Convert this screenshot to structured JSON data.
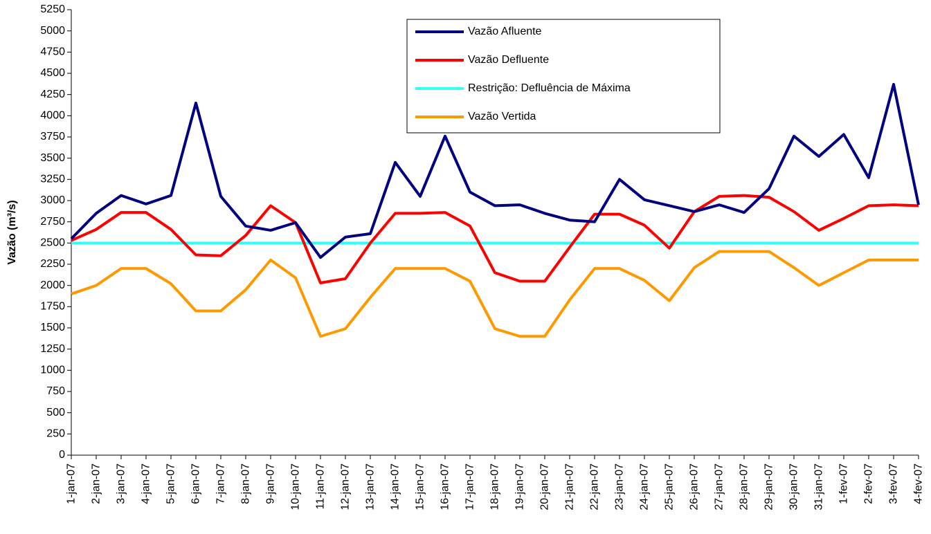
{
  "chart_data": {
    "type": "line",
    "ylabel": "Vazão (m³/s)",
    "categories": [
      "1-jan-07",
      "2-jan-07",
      "3-jan-07",
      "4-jan-07",
      "5-jan-07",
      "6-jan-07",
      "7-jan-07",
      "8-jan-07",
      "9-jan-07",
      "10-jan-07",
      "11-jan-07",
      "12-jan-07",
      "13-jan-07",
      "14-jan-07",
      "15-jan-07",
      "16-jan-07",
      "17-jan-07",
      "18-jan-07",
      "19-jan-07",
      "20-jan-07",
      "21-jan-07",
      "22-jan-07",
      "23-jan-07",
      "24-jan-07",
      "25-jan-07",
      "26-jan-07",
      "27-jan-07",
      "28-jan-07",
      "29-jan-07",
      "30-jan-07",
      "31-jan-07",
      "1-fev-07",
      "2-fev-07",
      "3-fev-07",
      "4-fev-07"
    ],
    "series": [
      {
        "name": "Vazão Afluente",
        "color": "#000080",
        "values": [
          2550,
          2850,
          3060,
          2960,
          3060,
          4150,
          3050,
          2700,
          2650,
          2740,
          2330,
          2570,
          2610,
          3450,
          3050,
          3760,
          3100,
          2940,
          2950,
          2850,
          2770,
          2750,
          3250,
          3010,
          2940,
          2870,
          2950,
          2860,
          3140,
          3760,
          3520,
          3780,
          3270,
          4370,
          2950
        ]
      },
      {
        "name": "Vazão Defluente",
        "color": "#ff0000",
        "values": [
          2530,
          2660,
          2860,
          2860,
          2660,
          2360,
          2350,
          2590,
          2940,
          2740,
          2030,
          2080,
          2500,
          2850,
          2850,
          2860,
          2700,
          2150,
          2050,
          2050,
          2450,
          2840,
          2840,
          2710,
          2440,
          2870,
          3050,
          3060,
          3040,
          2870,
          2650,
          2790,
          2940,
          2950,
          2940
        ]
      },
      {
        "name": "Restrição: Defluência de Máxima",
        "color": "#33ffff",
        "values": [
          2500,
          2500,
          2500,
          2500,
          2500,
          2500,
          2500,
          2500,
          2500,
          2500,
          2500,
          2500,
          2500,
          2500,
          2500,
          2500,
          2500,
          2500,
          2500,
          2500,
          2500,
          2500,
          2500,
          2500,
          2500,
          2500,
          2500,
          2500,
          2500,
          2500,
          2500,
          2500,
          2500,
          2500,
          2500
        ]
      },
      {
        "name": "Vazão Vertida",
        "color": "#ff9900",
        "values": [
          1900,
          2000,
          2200,
          2200,
          2020,
          1700,
          1700,
          1950,
          2300,
          2090,
          1400,
          1490,
          1860,
          2200,
          2200,
          2200,
          2050,
          1490,
          1400,
          1400,
          1830,
          2200,
          2200,
          2060,
          1820,
          2210,
          2400,
          2400,
          2400,
          2210,
          2000,
          2150,
          2300,
          2300,
          2300
        ]
      }
    ],
    "ylim": [
      0,
      5250
    ],
    "yticks": [
      0,
      250,
      500,
      750,
      1000,
      1250,
      1500,
      1750,
      2000,
      2250,
      2500,
      2750,
      3000,
      3250,
      3500,
      3750,
      4000,
      4250,
      4500,
      4750,
      5000,
      5250
    ],
    "grid": false,
    "legend": "top"
  }
}
